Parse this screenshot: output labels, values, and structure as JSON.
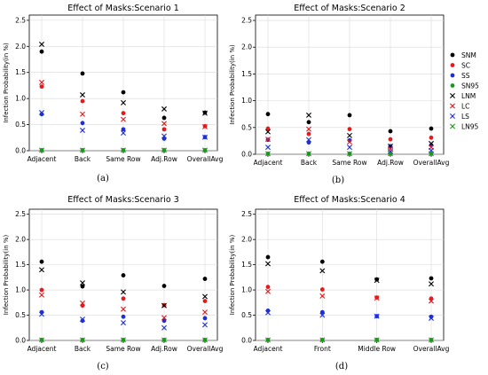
{
  "legend": {
    "entries": [
      {
        "label": "SNM",
        "marker": "dot",
        "color": "#000000"
      },
      {
        "label": "SC",
        "marker": "dot",
        "color": "#e41a1c"
      },
      {
        "label": "SS",
        "marker": "dot",
        "color": "#1f2fd6"
      },
      {
        "label": "SN95",
        "marker": "dot",
        "color": "#1a9a1a"
      },
      {
        "label": "LNM",
        "marker": "x",
        "color": "#000000"
      },
      {
        "label": "LC",
        "marker": "x",
        "color": "#e41a1c"
      },
      {
        "label": "LS",
        "marker": "x",
        "color": "#1f2fd6"
      },
      {
        "label": "LN95",
        "marker": "x",
        "color": "#1a9a1a"
      }
    ]
  },
  "chart_data": [
    {
      "type": "scatter",
      "title": "Effect of Masks:Scenario 1",
      "caption": "(a)",
      "ylabel": "Infection Probability(in %)",
      "ylim": [
        0,
        2.6
      ],
      "yticks": [
        "0.0",
        "0.5",
        "1.0",
        "1.5",
        "2.0",
        "2.5"
      ],
      "categories": [
        "Adjacent",
        "Back",
        "Same Row",
        "Adj.Row",
        "OverallAvg"
      ],
      "series": [
        {
          "name": "SNM",
          "values": [
            1.9,
            1.48,
            1.12,
            0.63,
            0.73
          ]
        },
        {
          "name": "SC",
          "values": [
            1.23,
            0.95,
            0.72,
            0.41,
            0.47
          ]
        },
        {
          "name": "SS",
          "values": [
            0.7,
            0.53,
            0.41,
            0.23,
            0.26
          ]
        },
        {
          "name": "SN95",
          "values": [
            0.01,
            0.01,
            0.01,
            0.01,
            0.01
          ]
        },
        {
          "name": "LNM",
          "values": [
            2.04,
            1.07,
            0.92,
            0.8,
            0.72
          ]
        },
        {
          "name": "LC",
          "values": [
            1.31,
            0.7,
            0.6,
            0.52,
            0.46
          ]
        },
        {
          "name": "LS",
          "values": [
            0.73,
            0.39,
            0.34,
            0.28,
            0.26
          ]
        },
        {
          "name": "LN95",
          "values": [
            0.01,
            0.01,
            0.01,
            0.01,
            0.01
          ]
        }
      ]
    },
    {
      "type": "scatter",
      "title": "Effect of Masks:Scenario 2",
      "caption": "(b)",
      "ylabel": "Infection Probability(in %)",
      "ylim": [
        0,
        2.6
      ],
      "yticks": [
        "0.0",
        "0.5",
        "1.0",
        "1.5",
        "2.0",
        "2.5"
      ],
      "categories": [
        "Adjacent",
        "Back",
        "Same Row",
        "Adj.Row",
        "OverallAvg"
      ],
      "series": [
        {
          "name": "SNM",
          "values": [
            0.75,
            0.6,
            0.73,
            0.43,
            0.48
          ]
        },
        {
          "name": "SC",
          "values": [
            0.48,
            0.38,
            0.47,
            0.28,
            0.31
          ]
        },
        {
          "name": "SS",
          "values": [
            0.27,
            0.22,
            0.26,
            0.15,
            0.17
          ]
        },
        {
          "name": "SN95",
          "values": [
            0.01,
            0.01,
            0.01,
            0.01,
            0.01
          ]
        },
        {
          "name": "LNM",
          "values": [
            0.42,
            0.73,
            0.35,
            0.15,
            0.2
          ]
        },
        {
          "name": "LC",
          "values": [
            0.28,
            0.47,
            0.23,
            0.1,
            0.13
          ]
        },
        {
          "name": "LS",
          "values": [
            0.13,
            0.27,
            0.13,
            0.05,
            0.07
          ]
        },
        {
          "name": "LN95",
          "values": [
            0.01,
            0.01,
            0.01,
            0.01,
            0.01
          ]
        }
      ]
    },
    {
      "type": "scatter",
      "title": "Effect of Masks:Scenario 3",
      "caption": "(c)",
      "ylabel": "Infection Probability(in %)",
      "ylim": [
        0,
        2.6
      ],
      "yticks": [
        "0.0",
        "0.5",
        "1.0",
        "1.5",
        "2.0",
        "2.5"
      ],
      "categories": [
        "Adjacent",
        "Back",
        "Same Row",
        "Adj.Row",
        "OverallAvg"
      ],
      "series": [
        {
          "name": "SNM",
          "values": [
            1.56,
            1.07,
            1.29,
            1.08,
            1.22
          ]
        },
        {
          "name": "SC",
          "values": [
            1.0,
            0.69,
            0.83,
            0.7,
            0.78
          ]
        },
        {
          "name": "SS",
          "values": [
            0.56,
            0.39,
            0.47,
            0.39,
            0.44
          ]
        },
        {
          "name": "SN95",
          "values": [
            0.01,
            0.01,
            0.01,
            0.01,
            0.01
          ]
        },
        {
          "name": "LNM",
          "values": [
            1.4,
            1.14,
            0.96,
            0.69,
            0.87
          ]
        },
        {
          "name": "LC",
          "values": [
            0.9,
            0.74,
            0.62,
            0.45,
            0.56
          ]
        },
        {
          "name": "LS",
          "values": [
            0.52,
            0.42,
            0.35,
            0.25,
            0.31
          ]
        },
        {
          "name": "LN95",
          "values": [
            0.01,
            0.01,
            0.01,
            0.01,
            0.01
          ]
        }
      ]
    },
    {
      "type": "scatter",
      "title": "Effect of Masks:Scenario 4",
      "caption": "(d)",
      "ylabel": "Infection Probability(in %)",
      "ylim": [
        0,
        2.6
      ],
      "yticks": [
        "0.0",
        "0.5",
        "1.0",
        "1.5",
        "2.0",
        "2.5"
      ],
      "categories": [
        "Adjacent",
        "Front",
        "Middle Row",
        "OverallAvg"
      ],
      "series": [
        {
          "name": "SNM",
          "values": [
            1.65,
            1.56,
            1.21,
            1.23
          ]
        },
        {
          "name": "SC",
          "values": [
            1.06,
            1.01,
            0.85,
            0.83
          ]
        },
        {
          "name": "SS",
          "values": [
            0.59,
            0.56,
            0.48,
            0.47
          ]
        },
        {
          "name": "SN95",
          "values": [
            0.01,
            0.01,
            0.01,
            0.01
          ]
        },
        {
          "name": "LNM",
          "values": [
            1.52,
            1.38,
            1.19,
            1.12
          ]
        },
        {
          "name": "LC",
          "values": [
            0.97,
            0.88,
            0.84,
            0.78
          ]
        },
        {
          "name": "LS",
          "values": [
            0.55,
            0.5,
            0.48,
            0.44
          ]
        },
        {
          "name": "LN95",
          "values": [
            0.01,
            0.01,
            0.01,
            0.01
          ]
        }
      ]
    }
  ]
}
